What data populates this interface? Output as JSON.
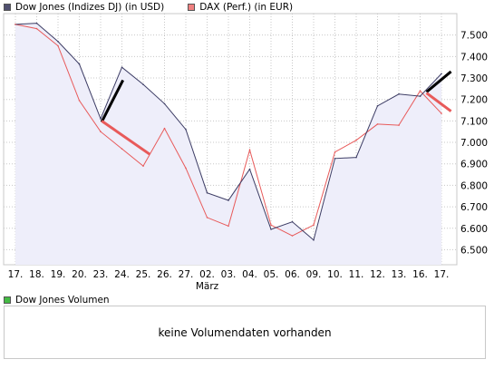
{
  "legend": {
    "dow_label": "Dow Jones (Indizes DJ) (in USD)",
    "dax_label": "DAX (Perf.) (in EUR)",
    "volume_label": "Dow Jones Volumen"
  },
  "volume_panel": {
    "message": "keine Volumendaten vorhanden"
  },
  "colors": {
    "dow_line": "#3c3c64",
    "dow_fill": "#eeeefa",
    "dax_line": "#e85a5a",
    "dax_swatch": "#f08080",
    "dow_swatch": "#505070",
    "volume_swatch": "#44bb44",
    "grid": "#c8c8c8",
    "trend_dark": "#000000",
    "trend_red": "#e85a5a"
  },
  "chart_data": {
    "type": "line",
    "title": "",
    "x_tick_labels": [
      "17.",
      "18.",
      "19.",
      "20.",
      "23.",
      "24.",
      "25.",
      "26.",
      "27.",
      "02.",
      "03.",
      "04.",
      "05.",
      "06.",
      "09.",
      "10.",
      "11.",
      "12.",
      "13.",
      "16.",
      "17."
    ],
    "x_sublabel": "März",
    "x_sublabel_index": 9,
    "ylim": [
      6430,
      7600
    ],
    "y_ticks": [
      6500,
      6600,
      6700,
      6800,
      6900,
      7000,
      7100,
      7200,
      7300,
      7400,
      7500
    ],
    "y_tick_labels": [
      "6.500",
      "6.600",
      "6.700",
      "6.800",
      "6.900",
      "7.000",
      "7.100",
      "7.200",
      "7.300",
      "7.400",
      "7.500"
    ],
    "grid": true,
    "series": [
      {
        "name": "Dow Jones (Indizes DJ) (in USD)",
        "values": [
          7550,
          7555,
          7470,
          7365,
          7110,
          7350,
          7270,
          7180,
          7060,
          6765,
          6730,
          6875,
          6595,
          6630,
          6545,
          6925,
          6930,
          7170,
          7225,
          7215,
          7320
        ]
      },
      {
        "name": "DAX (Perf.) (in EUR)",
        "values": [
          7550,
          7530,
          7450,
          7195,
          7050,
          6970,
          6890,
          7065,
          6880,
          6650,
          6610,
          6965,
          6615,
          6565,
          6615,
          6955,
          7010,
          7085,
          7080,
          7240,
          7135
        ]
      }
    ],
    "trend_segments": [
      {
        "color": "trend_dark",
        "from": [
          4.05,
          7095
        ],
        "to": [
          5.05,
          7290
        ]
      },
      {
        "color": "trend_red",
        "from": [
          4.05,
          7100
        ],
        "to": [
          6.3,
          6945
        ]
      },
      {
        "color": "trend_dark",
        "from": [
          19.3,
          7235
        ],
        "to": [
          20.45,
          7330
        ]
      },
      {
        "color": "trend_red",
        "from": [
          19.3,
          7230
        ],
        "to": [
          20.45,
          7145
        ]
      }
    ]
  }
}
